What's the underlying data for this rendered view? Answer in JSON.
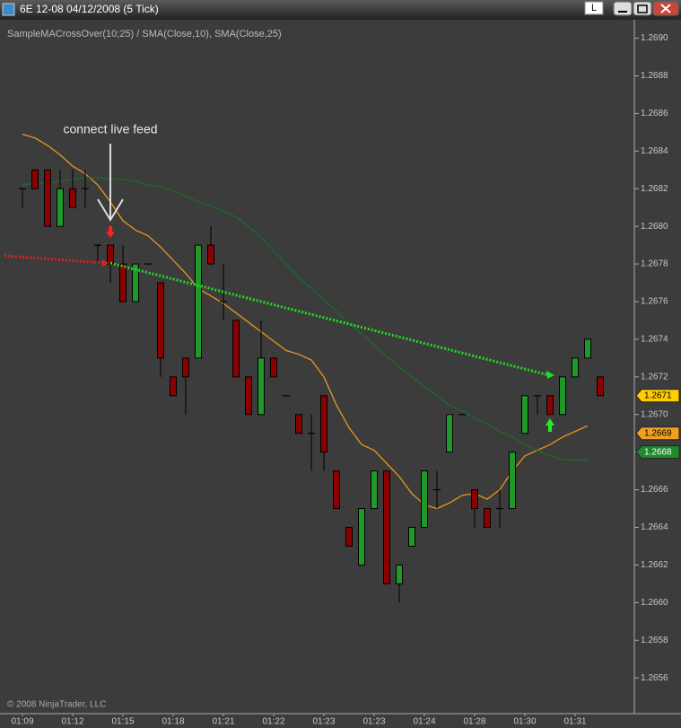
{
  "window_title": "6E 12-08  04/12/2008 (5 Tick)",
  "button_label": "L",
  "chart_data": {
    "type": "candlestick",
    "subtitle": "SampleMACrossOver(10;25) / SMA(Close,10), SMA(Close,25)",
    "annotation": "connect live feed",
    "footer": "© 2008 NinjaTrader, LLC",
    "categories": [
      "01:09",
      null,
      null,
      null,
      "01:12",
      null,
      null,
      null,
      "01:15",
      null,
      null,
      null,
      "01:18",
      null,
      null,
      null,
      "01:21",
      null,
      null,
      null,
      "01:22",
      null,
      null,
      null,
      "01:23",
      null,
      null,
      null,
      "01:23",
      null,
      null,
      null,
      "01:24",
      null,
      null,
      null,
      "01:28",
      null,
      null,
      null,
      "01:30",
      null,
      null,
      null,
      "01:31",
      null,
      null
    ],
    "open": [
      1.2682,
      1.2683,
      1.2683,
      1.268,
      1.2682,
      1.2682,
      1.2679,
      1.2679,
      1.2678,
      1.2676,
      1.2678,
      1.2677,
      1.2672,
      1.2673,
      1.2673,
      1.2679,
      1.2676,
      1.2675,
      1.2672,
      1.267,
      1.2673,
      1.2671,
      1.267,
      1.2669,
      1.2671,
      1.2667,
      1.2664,
      1.2662,
      1.2665,
      1.2667,
      1.2661,
      1.2663,
      1.2664,
      1.2666,
      1.2668,
      1.267,
      1.2666,
      1.2665,
      1.2665,
      1.2665,
      1.2669,
      1.2671,
      1.2671,
      1.267,
      1.2672,
      1.2673,
      1.2672
    ],
    "high": [
      1.2682,
      1.2683,
      1.2683,
      1.2683,
      1.2683,
      1.2683,
      1.2679,
      1.2679,
      1.2679,
      1.2678,
      1.2678,
      1.2677,
      1.2672,
      1.2673,
      1.2679,
      1.268,
      1.2678,
      1.2675,
      1.2672,
      1.2675,
      1.2673,
      1.2671,
      1.267,
      1.267,
      1.2671,
      1.2667,
      1.2664,
      1.2665,
      1.2667,
      1.2667,
      1.2662,
      1.2664,
      1.2667,
      1.2667,
      1.267,
      1.267,
      1.2666,
      1.2665,
      1.2666,
      1.2668,
      1.2671,
      1.2671,
      1.2671,
      1.2672,
      1.2673,
      1.2674,
      1.2672
    ],
    "low": [
      1.2681,
      1.2682,
      1.268,
      1.268,
      1.2681,
      1.2681,
      1.2678,
      1.2677,
      1.2676,
      1.2676,
      1.2678,
      1.2672,
      1.2671,
      1.267,
      1.2673,
      1.2678,
      1.2675,
      1.2672,
      1.267,
      1.267,
      1.2672,
      1.2671,
      1.2669,
      1.2667,
      1.2667,
      1.2665,
      1.2663,
      1.2662,
      1.2665,
      1.2661,
      1.266,
      1.2663,
      1.2664,
      1.2665,
      1.2668,
      1.267,
      1.2664,
      1.2664,
      1.2664,
      1.2665,
      1.2669,
      1.267,
      1.267,
      1.267,
      1.2672,
      1.2673,
      1.2671
    ],
    "close": [
      1.2682,
      1.2682,
      1.268,
      1.2682,
      1.2681,
      1.2682,
      1.2679,
      1.2678,
      1.2676,
      1.2678,
      1.2678,
      1.2673,
      1.2671,
      1.2672,
      1.2679,
      1.2678,
      1.2676,
      1.2672,
      1.267,
      1.2673,
      1.2672,
      1.2671,
      1.2669,
      1.2669,
      1.2668,
      1.2665,
      1.2663,
      1.2665,
      1.2667,
      1.2661,
      1.2662,
      1.2664,
      1.2667,
      1.2666,
      1.267,
      1.267,
      1.2665,
      1.2664,
      1.2665,
      1.2668,
      1.2671,
      1.2671,
      1.267,
      1.2672,
      1.2673,
      1.2674,
      1.2671
    ],
    "up_color": "#1f9a2a",
    "down_color": "#8b0000",
    "doji_color": "#000000",
    "lines": [
      {
        "color": "#e8961e",
        "values": [
          1.26849,
          1.26847,
          1.26843,
          1.26838,
          1.26832,
          1.26828,
          1.26822,
          1.26813,
          1.26803,
          1.26798,
          1.26795,
          1.26789,
          1.26782,
          1.26775,
          1.26767,
          1.26763,
          1.26759,
          1.26754,
          1.26749,
          1.26744,
          1.26739,
          1.26734,
          1.26732,
          1.26729,
          1.2672,
          1.26705,
          1.26693,
          1.26684,
          1.26681,
          1.26674,
          1.26667,
          1.26658,
          1.26652,
          1.2665,
          1.26653,
          1.26657,
          1.26658,
          1.26655,
          1.2666,
          1.2667,
          1.26678,
          1.26681,
          1.26684,
          1.26688,
          1.26691,
          1.26694,
          null
        ]
      },
      {
        "color": "#1e6a28",
        "values": [
          1.26822,
          1.26823,
          1.26823,
          1.26824,
          1.26825,
          1.26826,
          1.26826,
          1.26825,
          1.26825,
          1.26824,
          1.26822,
          1.26821,
          1.26819,
          1.26816,
          1.26813,
          1.26811,
          1.26808,
          1.26805,
          1.268,
          1.26794,
          1.26787,
          1.2678,
          1.26773,
          1.26767,
          1.26761,
          1.26755,
          1.26748,
          1.26743,
          1.26737,
          1.26731,
          1.26725,
          1.2672,
          1.26715,
          1.2671,
          1.26705,
          1.26702,
          1.26698,
          1.26695,
          1.26691,
          1.26688,
          1.26684,
          1.26681,
          1.26678,
          1.26676,
          1.26676,
          1.26676,
          null
        ]
      }
    ],
    "price_markers": [
      {
        "value": 1.2671,
        "label": "1.2671",
        "color": "#ffcc00"
      },
      {
        "value": 1.2669,
        "label": "1.2669",
        "color": "#f0a020"
      },
      {
        "value": 1.2668,
        "label": "1.2668",
        "color": "#1e8a2a"
      }
    ],
    "ylim": [
      1.26541,
      1.26906
    ],
    "yticks": [
      {
        "value": 1.269,
        "label": "1.2690"
      },
      {
        "value": 1.2688,
        "label": "1.2688"
      },
      {
        "value": 1.2686,
        "label": "1.2686"
      },
      {
        "value": 1.2684,
        "label": "1.2684"
      },
      {
        "value": 1.2682,
        "label": "1.2682"
      },
      {
        "value": 1.268,
        "label": "1.2680"
      },
      {
        "value": 1.2678,
        "label": "1.2678"
      },
      {
        "value": 1.2676,
        "label": "1.2676"
      },
      {
        "value": 1.2674,
        "label": "1.2674"
      },
      {
        "value": 1.2672,
        "label": "1.2672"
      },
      {
        "value": 1.267,
        "label": "1.2670"
      },
      {
        "value": 1.2668,
        "label": "1.2668"
      },
      {
        "value": 1.2666,
        "label": "1.2666"
      },
      {
        "value": 1.2664,
        "label": "1.2664"
      },
      {
        "value": 1.2662,
        "label": "1.2662"
      },
      {
        "value": 1.266,
        "label": "1.2660"
      },
      {
        "value": 1.2658,
        "label": "1.2658"
      },
      {
        "value": 1.2656,
        "label": "1.2656"
      }
    ]
  }
}
